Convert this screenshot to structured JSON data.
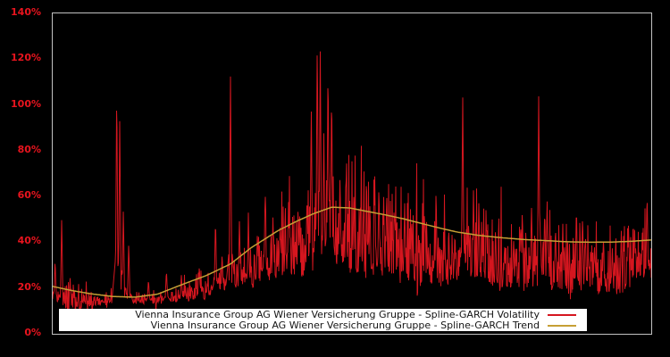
{
  "chart_data": {
    "type": "line",
    "title": "",
    "xlabel": "",
    "ylabel": "",
    "grid": false,
    "background": "#000000",
    "frame_color": "#c2c2c2",
    "axis_label_color": "#e8141e",
    "legend_position": "bottom-inside",
    "ylim": [
      0,
      140
    ],
    "y_ticks": [
      {
        "label": "0%",
        "value": 0
      },
      {
        "label": "20%",
        "value": 20
      },
      {
        "label": "40%",
        "value": 40
      },
      {
        "label": "60%",
        "value": 60
      },
      {
        "label": "80%",
        "value": 80
      },
      {
        "label": "100%",
        "value": 100
      },
      {
        "label": "120%",
        "value": 120
      },
      {
        "label": "140%",
        "value": 140
      }
    ],
    "x_tick_labels": [],
    "series": [
      {
        "name": "Vienna Insurance Group AG Wiener Versicherung Gruppe - Spline-GARCH Volatility",
        "color": "#d5161f",
        "style": "dense-jagged-daily"
      },
      {
        "name": "Vienna Insurance Group AG Wiener Versicherung Gruppe - Spline-GARCH Trend",
        "color": "#c69f35",
        "style": "smooth"
      }
    ],
    "trend_points": [
      [
        0.0,
        20.7
      ],
      [
        0.03,
        19.0
      ],
      [
        0.063,
        17.5
      ],
      [
        0.1,
        16.3
      ],
      [
        0.137,
        16.0
      ],
      [
        0.175,
        17.3
      ],
      [
        0.219,
        21.8
      ],
      [
        0.257,
        25.5
      ],
      [
        0.297,
        30.5
      ],
      [
        0.331,
        37.5
      ],
      [
        0.355,
        41.5
      ],
      [
        0.376,
        45.0
      ],
      [
        0.406,
        49.0
      ],
      [
        0.436,
        52.5
      ],
      [
        0.466,
        55.3
      ],
      [
        0.496,
        55.0
      ],
      [
        0.525,
        53.5
      ],
      [
        0.555,
        52.0
      ],
      [
        0.585,
        50.3
      ],
      [
        0.615,
        48.3
      ],
      [
        0.645,
        46.3
      ],
      [
        0.675,
        44.5
      ],
      [
        0.712,
        43.0
      ],
      [
        0.749,
        42.0
      ],
      [
        0.787,
        41.2
      ],
      [
        0.824,
        40.7
      ],
      [
        0.861,
        40.2
      ],
      [
        0.899,
        40.0
      ],
      [
        0.936,
        40.1
      ],
      [
        0.966,
        40.4
      ],
      [
        1.0,
        41.0
      ]
    ],
    "volatility_baseline": [
      [
        0.0,
        12.0
      ],
      [
        0.02,
        8.0
      ],
      [
        0.06,
        12.0
      ],
      [
        0.11,
        12.0
      ],
      [
        0.137,
        12.5
      ],
      [
        0.18,
        13.0
      ],
      [
        0.22,
        14.0
      ],
      [
        0.26,
        15.0
      ],
      [
        0.3,
        17.0
      ],
      [
        0.34,
        19.0
      ],
      [
        0.38,
        21.0
      ],
      [
        0.43,
        23.0
      ],
      [
        0.47,
        26.0
      ],
      [
        0.5,
        23.0
      ],
      [
        0.55,
        21.0
      ],
      [
        0.6,
        20.0
      ],
      [
        0.65,
        19.0
      ],
      [
        0.7,
        19.0
      ],
      [
        0.75,
        17.0
      ],
      [
        0.8,
        18.0
      ],
      [
        0.85,
        16.0
      ],
      [
        0.9,
        16.0
      ],
      [
        0.95,
        16.0
      ],
      [
        1.0,
        22.0
      ]
    ],
    "volatility_spikes": [
      [
        0.004,
        33
      ],
      [
        0.015,
        51
      ],
      [
        0.029,
        25
      ],
      [
        0.107,
        109
      ],
      [
        0.112,
        95
      ],
      [
        0.118,
        55
      ],
      [
        0.127,
        40
      ],
      [
        0.16,
        24
      ],
      [
        0.19,
        28
      ],
      [
        0.215,
        26
      ],
      [
        0.245,
        30
      ],
      [
        0.272,
        51
      ],
      [
        0.283,
        35
      ],
      [
        0.297,
        113
      ],
      [
        0.312,
        50
      ],
      [
        0.327,
        50
      ],
      [
        0.342,
        45
      ],
      [
        0.355,
        64
      ],
      [
        0.368,
        52
      ],
      [
        0.38,
        48
      ],
      [
        0.394,
        58
      ],
      [
        0.41,
        55
      ],
      [
        0.425,
        62
      ],
      [
        0.432,
        100
      ],
      [
        0.442,
        131
      ],
      [
        0.447,
        124
      ],
      [
        0.453,
        88
      ],
      [
        0.46,
        119
      ],
      [
        0.466,
        108
      ],
      [
        0.48,
        70
      ],
      [
        0.49,
        73
      ],
      [
        0.503,
        60
      ],
      [
        0.515,
        55
      ],
      [
        0.53,
        58
      ],
      [
        0.538,
        70
      ],
      [
        0.545,
        66
      ],
      [
        0.553,
        60
      ],
      [
        0.558,
        63
      ],
      [
        0.572,
        50
      ],
      [
        0.588,
        58
      ],
      [
        0.6,
        48
      ],
      [
        0.622,
        53
      ],
      [
        0.64,
        45
      ],
      [
        0.655,
        42
      ],
      [
        0.672,
        45
      ],
      [
        0.685,
        106
      ],
      [
        0.695,
        50
      ],
      [
        0.703,
        63
      ],
      [
        0.712,
        58
      ],
      [
        0.725,
        50
      ],
      [
        0.74,
        45
      ],
      [
        0.755,
        40
      ],
      [
        0.77,
        42
      ],
      [
        0.785,
        48
      ],
      [
        0.8,
        55
      ],
      [
        0.812,
        106
      ],
      [
        0.822,
        56
      ],
      [
        0.826,
        60
      ],
      [
        0.84,
        48
      ],
      [
        0.855,
        40
      ],
      [
        0.875,
        57
      ],
      [
        0.89,
        45
      ],
      [
        0.905,
        40
      ],
      [
        0.92,
        42
      ],
      [
        0.935,
        38
      ],
      [
        0.95,
        45
      ],
      [
        0.962,
        48
      ],
      [
        0.972,
        50
      ],
      [
        0.985,
        45
      ],
      [
        0.993,
        62
      ]
    ]
  },
  "legend": {
    "items": [
      {
        "label": "Vienna Insurance Group AG Wiener Versicherung Gruppe - Spline-GARCH Volatility"
      },
      {
        "label": "Vienna Insurance Group AG Wiener Versicherung Gruppe - Spline-GARCH Trend"
      }
    ]
  }
}
